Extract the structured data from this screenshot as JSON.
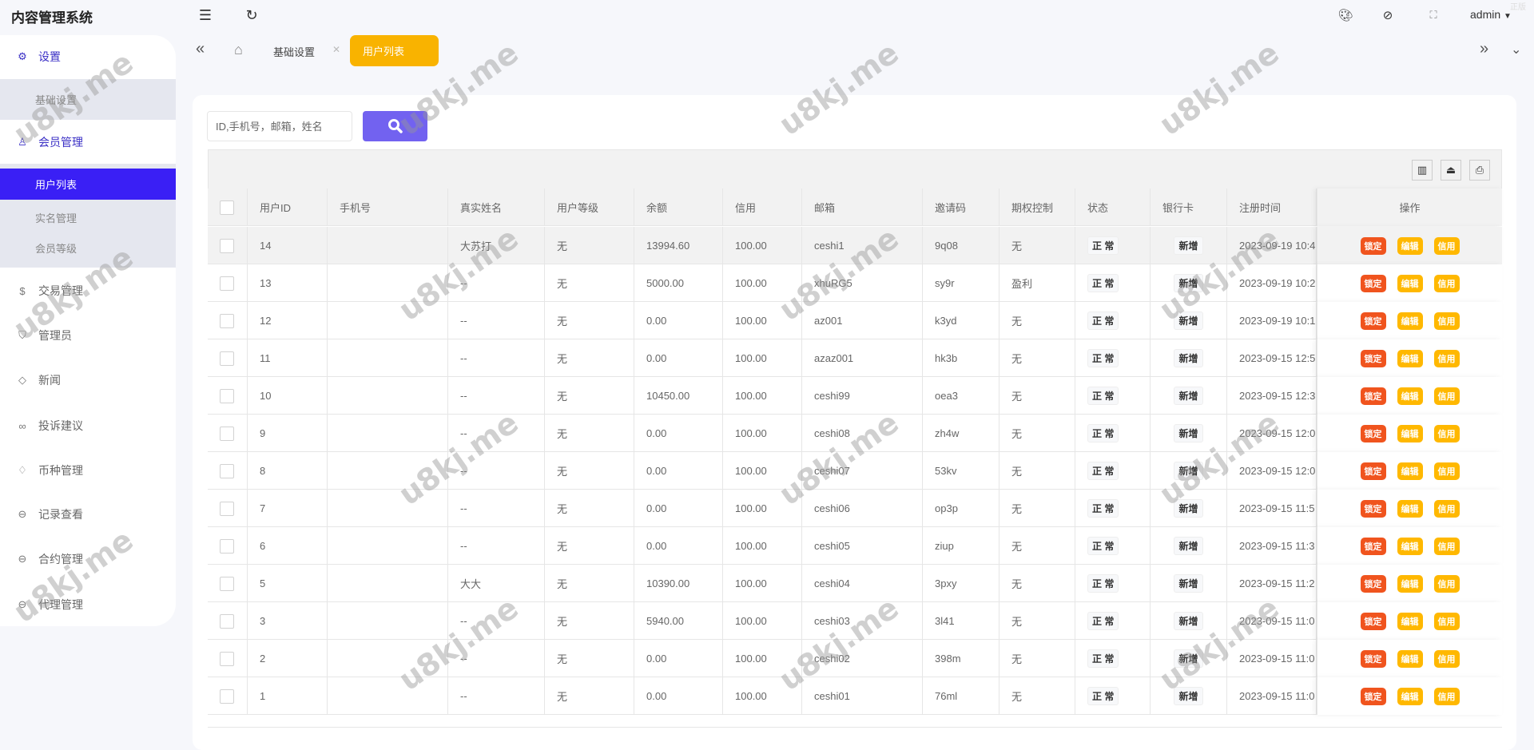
{
  "app_title": "内容管理系统",
  "corner_mark": "正版",
  "topbar": {
    "user": "admin",
    "icons": [
      "menu-fold-icon",
      "refresh-icon",
      "palette-icon",
      "tag-icon",
      "fullscreen-icon",
      "caret-down-icon"
    ]
  },
  "sidebar": {
    "items": [
      {
        "label": "设置",
        "icon": "gear-icon"
      },
      {
        "label": "会员管理",
        "icon": "user-icon"
      },
      {
        "label": "交易管理",
        "icon": "dollar-icon"
      },
      {
        "label": "管理员",
        "icon": "shield-icon"
      },
      {
        "label": "新闻",
        "icon": "tag-icon"
      },
      {
        "label": "投诉建议",
        "icon": "link-icon"
      },
      {
        "label": "币种管理",
        "icon": "diamond-icon"
      },
      {
        "label": "记录查看",
        "icon": "login-icon"
      },
      {
        "label": "合约管理",
        "icon": "login-icon"
      },
      {
        "label": "代理管理",
        "icon": "login-icon"
      }
    ],
    "settings_sub": [
      "基础设置"
    ],
    "member_sub": [
      "用户列表",
      "实名管理",
      "会员等级"
    ],
    "active": "用户列表"
  },
  "tabs": {
    "items": [
      "基础设置",
      "用户列表"
    ],
    "active": "用户列表"
  },
  "search": {
    "placeholder": "ID,手机号，邮箱，姓名",
    "value": ""
  },
  "table": {
    "columns": [
      "用户ID",
      "手机号",
      "真实姓名",
      "用户等级",
      "余额",
      "信用",
      "邮箱",
      "邀请码",
      "期权控制",
      "状态",
      "银行卡",
      "注册时间",
      "操作"
    ],
    "action_labels": [
      "锁定",
      "编辑",
      "信用"
    ],
    "action_colors": [
      "#f0541e",
      "#ffb800",
      "#ffb800"
    ],
    "rows": [
      [
        "14",
        "",
        "大苏打",
        "无",
        "13994.60",
        "100.00",
        "ceshi1",
        "9q08",
        "无",
        "正 常",
        "新增",
        "2023-09-19 10:4"
      ],
      [
        "13",
        "",
        "--",
        "无",
        "5000.00",
        "100.00",
        "xhuRG5",
        "sy9r",
        "盈利",
        "正 常",
        "新增",
        "2023-09-19 10:2"
      ],
      [
        "12",
        "",
        "--",
        "无",
        "0.00",
        "100.00",
        "az001",
        "k3yd",
        "无",
        "正 常",
        "新增",
        "2023-09-19 10:1"
      ],
      [
        "11",
        "",
        "--",
        "无",
        "0.00",
        "100.00",
        "azaz001",
        "hk3b",
        "无",
        "正 常",
        "新增",
        "2023-09-15 12:5"
      ],
      [
        "10",
        "",
        "--",
        "无",
        "10450.00",
        "100.00",
        "ceshi99",
        "oea3",
        "无",
        "正 常",
        "新增",
        "2023-09-15 12:3"
      ],
      [
        "9",
        "",
        "--",
        "无",
        "0.00",
        "100.00",
        "ceshi08",
        "zh4w",
        "无",
        "正 常",
        "新增",
        "2023-09-15 12:0"
      ],
      [
        "8",
        "",
        "--",
        "无",
        "0.00",
        "100.00",
        "ceshi07",
        "53kv",
        "无",
        "正 常",
        "新增",
        "2023-09-15 12:0"
      ],
      [
        "7",
        "",
        "--",
        "无",
        "0.00",
        "100.00",
        "ceshi06",
        "op3p",
        "无",
        "正 常",
        "新增",
        "2023-09-15 11:5"
      ],
      [
        "6",
        "",
        "--",
        "无",
        "0.00",
        "100.00",
        "ceshi05",
        "ziup",
        "无",
        "正 常",
        "新增",
        "2023-09-15 11:3"
      ],
      [
        "5",
        "",
        "大大",
        "无",
        "10390.00",
        "100.00",
        "ceshi04",
        "3pxy",
        "无",
        "正 常",
        "新增",
        "2023-09-15 11:2"
      ],
      [
        "3",
        "",
        "--",
        "无",
        "5940.00",
        "100.00",
        "ceshi03",
        "3l41",
        "无",
        "正 常",
        "新增",
        "2023-09-15 11:0"
      ],
      [
        "2",
        "",
        "--",
        "无",
        "0.00",
        "100.00",
        "ceshi02",
        "398m",
        "无",
        "正 常",
        "新增",
        "2023-09-15 11:0"
      ],
      [
        "1",
        "",
        "--",
        "无",
        "0.00",
        "100.00",
        "ceshi01",
        "76ml",
        "无",
        "正 常",
        "新增",
        "2023-09-15 11:0"
      ]
    ]
  },
  "watermark": "u8kj.me",
  "colors": {
    "accent": "#3a1ff5",
    "tab_active": "#f9b300",
    "search_button": "#7262f0"
  }
}
